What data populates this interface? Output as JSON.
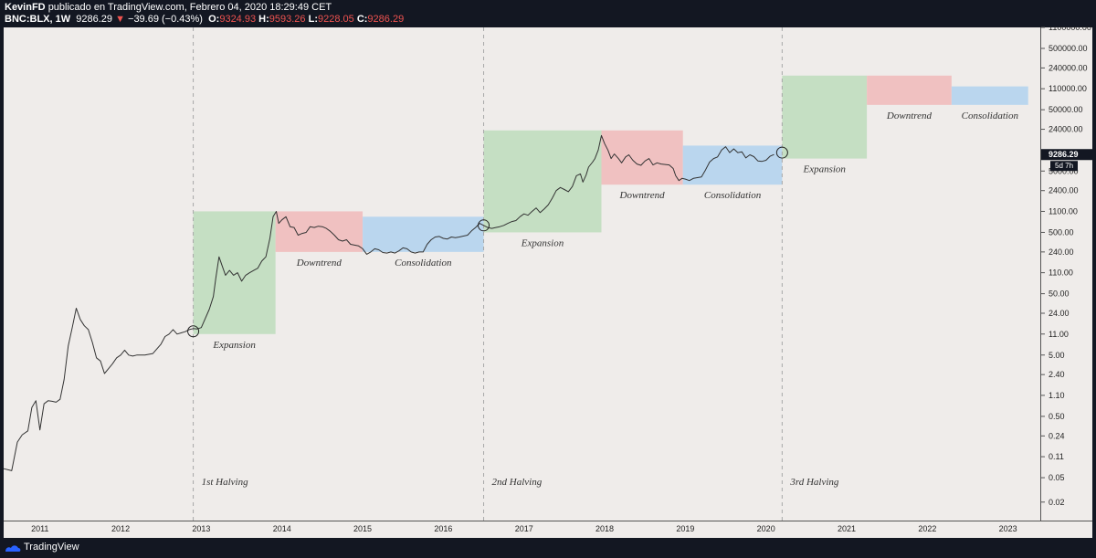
{
  "header": {
    "author": "KevinFD",
    "published": "publicado en TradingView.com, Febrero 04, 2020 18:29:49 CET",
    "symbol": "BNC:BLX, 1W",
    "price": "9286.29",
    "change_arrow": "▼",
    "change": "−39.69 (−0.43%)",
    "o_label": "O:",
    "o_value": "9324.93",
    "h_label": "H:",
    "h_value": "9593.26",
    "l_label": "L:",
    "l_value": "9228.05",
    "c_label": "C:",
    "c_value": "9286.29"
  },
  "footer": {
    "brand": "TradingView"
  },
  "colors": {
    "background": "#efecea",
    "frame": "#131722",
    "expansion": "#c5dfc3",
    "downtrend": "#f0c1c1",
    "consolidation": "#bad6ee",
    "price_line": "#333333",
    "halving_line": "#a8a8a8",
    "change_red": "#ef5350"
  },
  "chart_data": {
    "type": "line",
    "scale": "log",
    "series": [
      {
        "values": [
          [
            2010.55,
            0.07
          ],
          [
            2010.65,
            0.065
          ],
          [
            2010.72,
            0.19
          ],
          [
            2010.78,
            0.25
          ],
          [
            2010.85,
            0.29
          ],
          [
            2010.9,
            0.7
          ],
          [
            2010.95,
            0.9
          ],
          [
            2011.0,
            0.3
          ],
          [
            2011.05,
            0.8
          ],
          [
            2011.1,
            0.9
          ],
          [
            2011.15,
            0.88
          ],
          [
            2011.2,
            0.85
          ],
          [
            2011.25,
            0.95
          ],
          [
            2011.3,
            2
          ],
          [
            2011.35,
            7
          ],
          [
            2011.4,
            14
          ],
          [
            2011.45,
            29
          ],
          [
            2011.5,
            19
          ],
          [
            2011.55,
            15
          ],
          [
            2011.6,
            13
          ],
          [
            2011.65,
            8
          ],
          [
            2011.7,
            4.5
          ],
          [
            2011.75,
            4
          ],
          [
            2011.8,
            2.5
          ],
          [
            2011.85,
            3
          ],
          [
            2011.9,
            3.6
          ],
          [
            2011.95,
            4.5
          ],
          [
            2012.0,
            5
          ],
          [
            2012.05,
            6
          ],
          [
            2012.1,
            5
          ],
          [
            2012.15,
            4.8
          ],
          [
            2012.2,
            5
          ],
          [
            2012.3,
            5
          ],
          [
            2012.4,
            5.3
          ],
          [
            2012.5,
            7.5
          ],
          [
            2012.55,
            10
          ],
          [
            2012.6,
            11
          ],
          [
            2012.65,
            13
          ],
          [
            2012.7,
            11
          ],
          [
            2012.75,
            11.5
          ],
          [
            2012.8,
            12
          ],
          [
            2012.85,
            13
          ],
          [
            2012.9,
            13.5
          ],
          [
            2012.95,
            13.3
          ],
          [
            2013.0,
            14
          ],
          [
            2013.1,
            28
          ],
          [
            2013.15,
            45
          ],
          [
            2013.18,
            90
          ],
          [
            2013.22,
            200
          ],
          [
            2013.26,
            140
          ],
          [
            2013.3,
            100
          ],
          [
            2013.35,
            120
          ],
          [
            2013.4,
            100
          ],
          [
            2013.45,
            110
          ],
          [
            2013.5,
            80
          ],
          [
            2013.55,
            100
          ],
          [
            2013.6,
            110
          ],
          [
            2013.65,
            120
          ],
          [
            2013.7,
            130
          ],
          [
            2013.75,
            170
          ],
          [
            2013.8,
            200
          ],
          [
            2013.85,
            400
          ],
          [
            2013.89,
            900
          ],
          [
            2013.93,
            1100
          ],
          [
            2013.96,
            700
          ],
          [
            2014.0,
            800
          ],
          [
            2014.05,
            900
          ],
          [
            2014.1,
            620
          ],
          [
            2014.15,
            600
          ],
          [
            2014.2,
            450
          ],
          [
            2014.25,
            480
          ],
          [
            2014.3,
            500
          ],
          [
            2014.35,
            620
          ],
          [
            2014.4,
            600
          ],
          [
            2014.45,
            630
          ],
          [
            2014.5,
            620
          ],
          [
            2014.55,
            580
          ],
          [
            2014.6,
            520
          ],
          [
            2014.65,
            450
          ],
          [
            2014.7,
            380
          ],
          [
            2014.75,
            360
          ],
          [
            2014.8,
            380
          ],
          [
            2014.85,
            320
          ],
          [
            2014.9,
            310
          ],
          [
            2014.95,
            300
          ],
          [
            2015.0,
            270
          ],
          [
            2015.05,
            220
          ],
          [
            2015.1,
            240
          ],
          [
            2015.15,
            270
          ],
          [
            2015.2,
            260
          ],
          [
            2015.25,
            235
          ],
          [
            2015.3,
            230
          ],
          [
            2015.35,
            240
          ],
          [
            2015.4,
            230
          ],
          [
            2015.45,
            250
          ],
          [
            2015.5,
            280
          ],
          [
            2015.55,
            270
          ],
          [
            2015.6,
            240
          ],
          [
            2015.65,
            230
          ],
          [
            2015.7,
            240
          ],
          [
            2015.75,
            240
          ],
          [
            2015.8,
            320
          ],
          [
            2015.85,
            380
          ],
          [
            2015.9,
            420
          ],
          [
            2015.95,
            430
          ],
          [
            2016.0,
            400
          ],
          [
            2016.05,
            390
          ],
          [
            2016.1,
            420
          ],
          [
            2016.15,
            410
          ],
          [
            2016.2,
            420
          ],
          [
            2016.3,
            450
          ],
          [
            2016.35,
            530
          ],
          [
            2016.4,
            600
          ],
          [
            2016.45,
            700
          ],
          [
            2016.5,
            650
          ],
          [
            2016.55,
            600
          ],
          [
            2016.6,
            580
          ],
          [
            2016.65,
            600
          ],
          [
            2016.7,
            620
          ],
          [
            2016.75,
            650
          ],
          [
            2016.8,
            700
          ],
          [
            2016.85,
            750
          ],
          [
            2016.9,
            780
          ],
          [
            2016.95,
            900
          ],
          [
            2017.0,
            1000
          ],
          [
            2017.05,
            950
          ],
          [
            2017.1,
            1100
          ],
          [
            2017.15,
            1250
          ],
          [
            2017.2,
            1050
          ],
          [
            2017.25,
            1200
          ],
          [
            2017.3,
            1400
          ],
          [
            2017.35,
            1800
          ],
          [
            2017.4,
            2400
          ],
          [
            2017.45,
            2700
          ],
          [
            2017.5,
            2500
          ],
          [
            2017.55,
            2300
          ],
          [
            2017.6,
            2800
          ],
          [
            2017.65,
            4200
          ],
          [
            2017.7,
            4500
          ],
          [
            2017.73,
            3300
          ],
          [
            2017.77,
            4300
          ],
          [
            2017.8,
            5800
          ],
          [
            2017.85,
            7000
          ],
          [
            2017.88,
            8000
          ],
          [
            2017.92,
            11000
          ],
          [
            2017.96,
            19000
          ],
          [
            2018.0,
            14000
          ],
          [
            2018.04,
            11000
          ],
          [
            2018.08,
            8000
          ],
          [
            2018.12,
            9500
          ],
          [
            2018.17,
            8000
          ],
          [
            2018.21,
            6800
          ],
          [
            2018.26,
            8500
          ],
          [
            2018.3,
            9200
          ],
          [
            2018.35,
            7500
          ],
          [
            2018.4,
            6500
          ],
          [
            2018.45,
            6200
          ],
          [
            2018.5,
            7300
          ],
          [
            2018.55,
            8000
          ],
          [
            2018.6,
            6300
          ],
          [
            2018.65,
            6800
          ],
          [
            2018.7,
            6500
          ],
          [
            2018.75,
            6400
          ],
          [
            2018.8,
            6300
          ],
          [
            2018.85,
            5500
          ],
          [
            2018.88,
            4200
          ],
          [
            2018.92,
            3500
          ],
          [
            2018.96,
            3800
          ],
          [
            2019.0,
            3700
          ],
          [
            2019.05,
            3500
          ],
          [
            2019.1,
            3800
          ],
          [
            2019.15,
            3900
          ],
          [
            2019.2,
            4000
          ],
          [
            2019.25,
            5200
          ],
          [
            2019.3,
            7000
          ],
          [
            2019.35,
            8000
          ],
          [
            2019.4,
            8500
          ],
          [
            2019.45,
            11000
          ],
          [
            2019.5,
            12500
          ],
          [
            2019.55,
            10000
          ],
          [
            2019.6,
            11500
          ],
          [
            2019.65,
            10000
          ],
          [
            2019.7,
            10300
          ],
          [
            2019.75,
            8200
          ],
          [
            2019.8,
            9200
          ],
          [
            2019.85,
            8600
          ],
          [
            2019.9,
            7300
          ],
          [
            2019.95,
            7200
          ],
          [
            2020.0,
            7500
          ],
          [
            2020.05,
            8700
          ],
          [
            2020.1,
            9286
          ]
        ]
      }
    ],
    "xlim": [
      2010.55,
      2023.4
    ],
    "ylim": [
      0.01,
      1100000
    ],
    "x_ticks": [
      "2011",
      "2012",
      "2013",
      "2014",
      "2015",
      "2016",
      "2017",
      "2018",
      "2019",
      "2020",
      "2021",
      "2022",
      "2023"
    ],
    "x_tick_values": [
      2011,
      2012,
      2013,
      2014,
      2015,
      2016,
      2017,
      2018,
      2019,
      2020,
      2021,
      2022,
      2023
    ],
    "y_ticks": [
      "0.02",
      "0.05",
      "0.11",
      "0.24",
      "0.50",
      "1.10",
      "2.40",
      "5.00",
      "11.00",
      "24.00",
      "50.00",
      "110.00",
      "240.00",
      "500.00",
      "1100.00",
      "2400.00",
      "5000.00",
      "24000.00",
      "50000.00",
      "110000.00",
      "240000.00",
      "500000.00",
      "1100000.00"
    ],
    "y_tick_values": [
      0.02,
      0.05,
      0.11,
      0.24,
      0.5,
      1.1,
      2.4,
      5,
      11,
      24,
      50,
      110,
      240,
      500,
      1100,
      2400,
      5000,
      24000,
      50000,
      110000,
      240000,
      500000,
      1100000
    ],
    "zones": [
      {
        "kind": "expansion",
        "label": "Expansion",
        "x0": 2012.9,
        "x1": 2013.92,
        "ylo": 11,
        "yhi": 1100
      },
      {
        "kind": "downtrend",
        "label": "Downtrend",
        "x0": 2013.92,
        "x1": 2015.0,
        "ylo": 240,
        "yhi": 1100
      },
      {
        "kind": "consolidation",
        "label": "Consolidation",
        "x0": 2015.0,
        "x1": 2016.5,
        "ylo": 240,
        "yhi": 900
      },
      {
        "kind": "expansion",
        "label": "Expansion",
        "x0": 2016.5,
        "x1": 2017.96,
        "ylo": 500,
        "yhi": 23000
      },
      {
        "kind": "downtrend",
        "label": "Downtrend",
        "x0": 2017.96,
        "x1": 2018.97,
        "ylo": 3000,
        "yhi": 23000
      },
      {
        "kind": "consolidation",
        "label": "Consolidation",
        "x0": 2018.97,
        "x1": 2020.2,
        "ylo": 3000,
        "yhi": 13000
      },
      {
        "kind": "expansion",
        "label": "Expansion",
        "x0": 2020.2,
        "x1": 2021.25,
        "ylo": 8000,
        "yhi": 180000
      },
      {
        "kind": "downtrend",
        "label": "Downtrend",
        "x0": 2021.25,
        "x1": 2022.3,
        "ylo": 60000,
        "yhi": 180000
      },
      {
        "kind": "consolidation",
        "label": "Consolidation",
        "x0": 2022.3,
        "x1": 2023.25,
        "ylo": 60000,
        "yhi": 120000
      }
    ],
    "halvings": [
      {
        "label": "1st Halving",
        "x": 2012.9
      },
      {
        "label": "2nd Halving",
        "x": 2016.5
      },
      {
        "label": "3rd Halving",
        "x": 2020.2
      }
    ],
    "markers": [
      {
        "x": 2012.9,
        "y": 12.2
      },
      {
        "x": 2016.5,
        "y": 650
      },
      {
        "x": 2020.2,
        "y": 10000
      }
    ],
    "last_price": "9286.29",
    "countdown": "5d 7h"
  }
}
